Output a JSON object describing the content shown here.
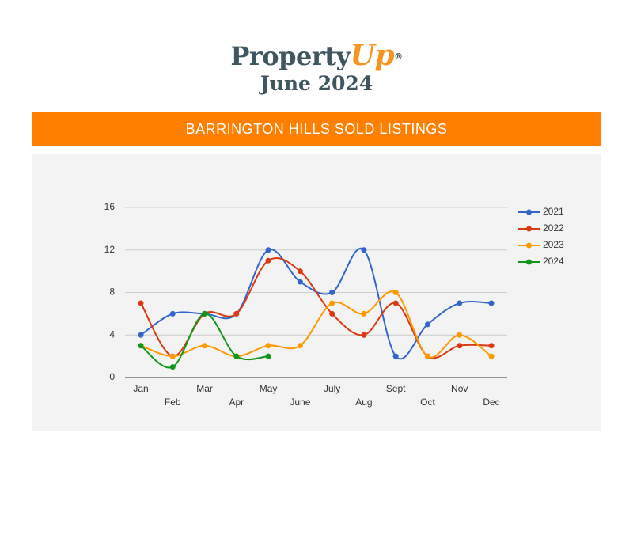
{
  "header": {
    "brand": "Property",
    "brand_accent": "Up",
    "registered": "®",
    "subtitle": "June 2024"
  },
  "banner": "BARRINGTON HILLS SOLD LISTINGS",
  "chart_data": {
    "type": "line",
    "categories": [
      "Jan",
      "Feb",
      "Mar",
      "Apr",
      "May",
      "June",
      "July",
      "Aug",
      "Sept",
      "Oct",
      "Nov",
      "Dec"
    ],
    "series": [
      {
        "name": "2021",
        "color": "#3366cc",
        "values": [
          4,
          6,
          6,
          6,
          12,
          9,
          8,
          12,
          2,
          5,
          7,
          7
        ]
      },
      {
        "name": "2022",
        "color": "#dc3912",
        "values": [
          7,
          2,
          6,
          6,
          11,
          10,
          6,
          4,
          7,
          2,
          3,
          3
        ]
      },
      {
        "name": "2023",
        "color": "#ff9900",
        "values": [
          3,
          2,
          3,
          2,
          3,
          3,
          7,
          6,
          8,
          2,
          4,
          2
        ]
      },
      {
        "name": "2024",
        "color": "#109618",
        "values": [
          3,
          1,
          6,
          2,
          2,
          null,
          null,
          null,
          null,
          null,
          null,
          null
        ]
      }
    ],
    "ylim": [
      0,
      16
    ],
    "yticks": [
      0,
      4,
      8,
      12,
      16
    ],
    "grid": true,
    "smooth": true,
    "legend": "right"
  }
}
